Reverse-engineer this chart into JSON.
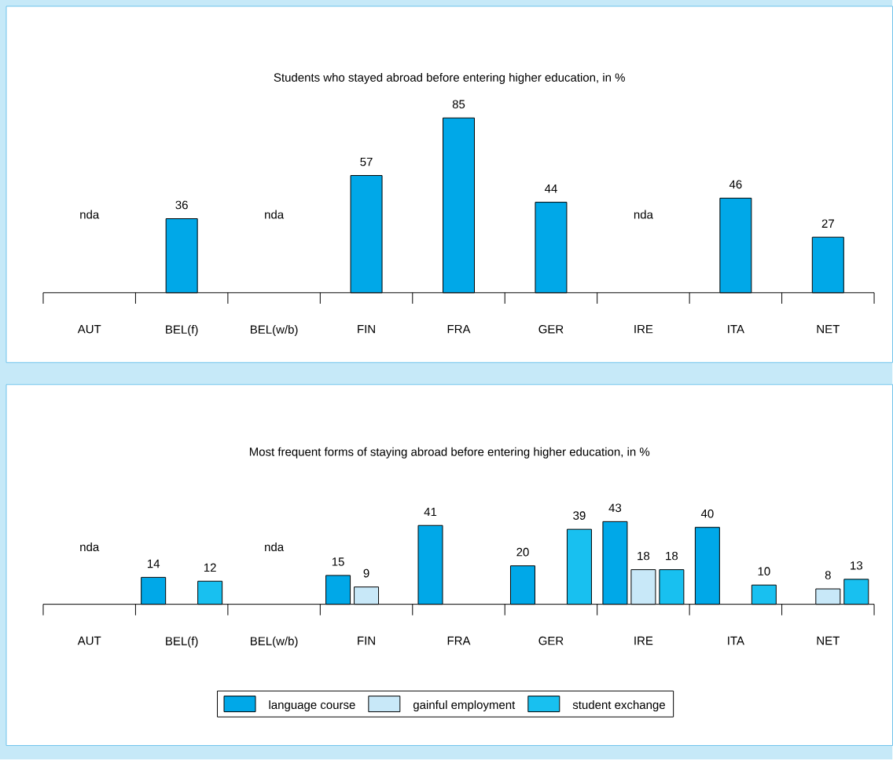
{
  "chart_data": [
    {
      "type": "bar",
      "title": "Students who stayed abroad before entering higher education, in %",
      "categories": [
        "AUT",
        "BEL(f)",
        "BEL(w/b)",
        "FIN",
        "FRA",
        "GER",
        "IRE",
        "ITA",
        "NET"
      ],
      "values": [
        null,
        36,
        null,
        57,
        85,
        44,
        null,
        46,
        27
      ],
      "color": "#00a8e8",
      "data_labels": true,
      "annotations": [
        "nda",
        "nda",
        "nda"
      ]
    },
    {
      "type": "bar",
      "title": "Most frequent forms of staying abroad before entering higher education, in %",
      "categories": [
        "AUT",
        "BEL(f)",
        "BEL(w/b)",
        "FIN",
        "FRA",
        "GER",
        "IRE",
        "ITA",
        "NET"
      ],
      "data_labels": true,
      "legend": "bottom",
      "series": [
        {
          "name": "language course",
          "color": "#00a8e8",
          "values": [
            null,
            14,
            null,
            15,
            41,
            20,
            43,
            40,
            null
          ]
        },
        {
          "name": "gainful employment",
          "color": "#c8e8f8",
          "values": [
            null,
            null,
            null,
            9,
            null,
            null,
            18,
            null,
            8
          ]
        },
        {
          "name": "student exchange",
          "color": "#18c0f0",
          "values": [
            null,
            12,
            null,
            null,
            null,
            39,
            18,
            10,
            13
          ]
        }
      ],
      "annotations": [
        "nda",
        "nda"
      ]
    }
  ]
}
